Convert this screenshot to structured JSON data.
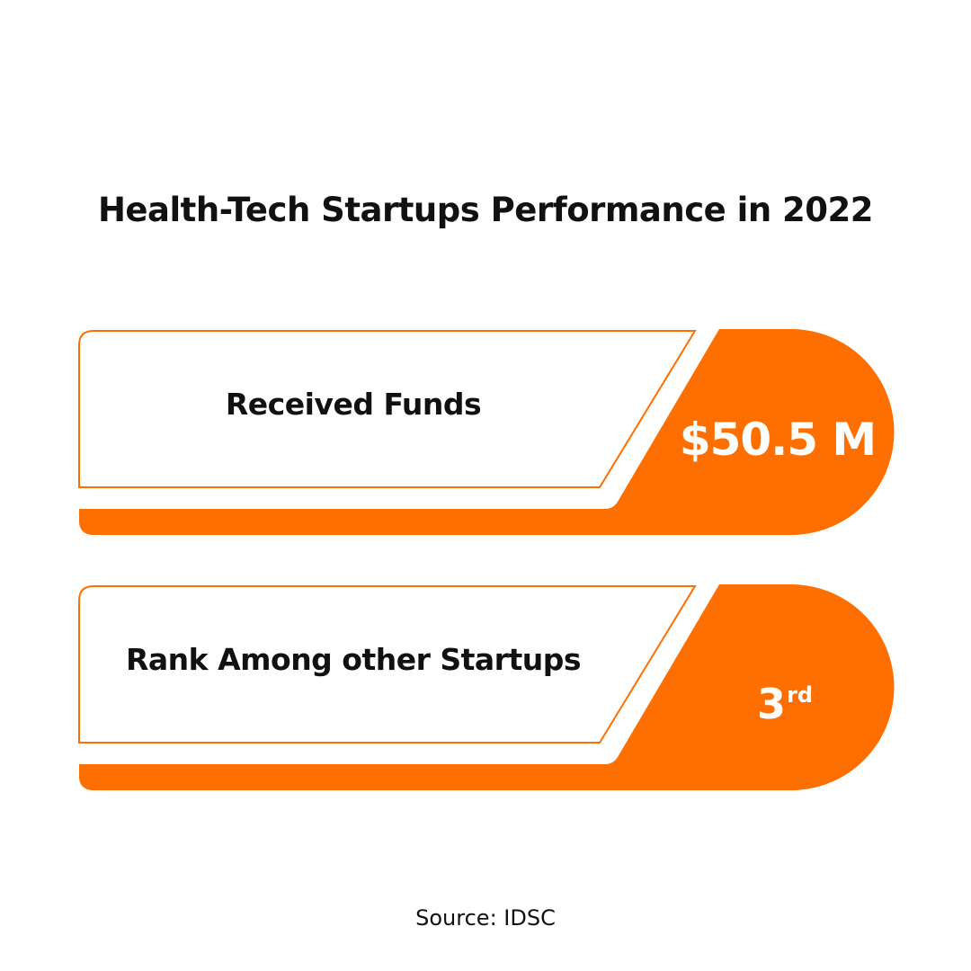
{
  "title": "Health-Tech Startups Performance in 2022",
  "cards": [
    {
      "label": "Received Funds",
      "value": "$50.5 M"
    },
    {
      "label": "Rank Among other Startups",
      "value": "3",
      "value_suffix": "rd"
    }
  ],
  "source": "Source: IDSC",
  "colors": {
    "accent": "#FF6F00",
    "text": "#111111",
    "background": "#FFFFFF"
  }
}
